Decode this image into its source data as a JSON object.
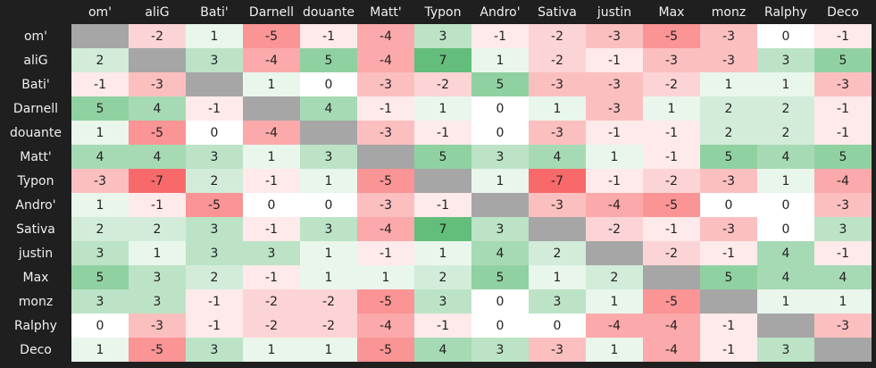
{
  "table": {
    "columns": [
      "om'",
      "aliG",
      "Bati'",
      "Darnell",
      "douante",
      "Matt'",
      "Typon",
      "Andro'",
      "Sativa",
      "justin",
      "Max",
      "monz",
      "Ralphy",
      "Deco"
    ],
    "rows": [
      {
        "label": "om'",
        "values": [
          null,
          -2,
          1,
          -5,
          -1,
          -4,
          3,
          -1,
          -2,
          -3,
          -5,
          -3,
          0,
          -1
        ]
      },
      {
        "label": "aliG",
        "values": [
          2,
          null,
          3,
          -4,
          5,
          -4,
          7,
          1,
          -2,
          -1,
          -3,
          -3,
          3,
          5
        ]
      },
      {
        "label": "Bati'",
        "values": [
          -1,
          -3,
          null,
          1,
          0,
          -3,
          -2,
          5,
          -3,
          -3,
          -2,
          1,
          1,
          -3
        ]
      },
      {
        "label": "Darnell",
        "values": [
          5,
          4,
          -1,
          null,
          4,
          -1,
          1,
          0,
          1,
          -3,
          1,
          2,
          2,
          -1
        ]
      },
      {
        "label": "douante",
        "values": [
          1,
          -5,
          0,
          -4,
          null,
          -3,
          -1,
          0,
          -3,
          -1,
          -1,
          2,
          2,
          -1
        ]
      },
      {
        "label": "Matt'",
        "values": [
          4,
          4,
          3,
          1,
          3,
          null,
          5,
          3,
          4,
          1,
          -1,
          5,
          4,
          5
        ]
      },
      {
        "label": "Typon",
        "values": [
          -3,
          -7,
          2,
          -1,
          1,
          -5,
          null,
          1,
          -7,
          -1,
          -2,
          -3,
          1,
          -4
        ]
      },
      {
        "label": "Andro'",
        "values": [
          1,
          -1,
          -5,
          0,
          0,
          -3,
          -1,
          null,
          -3,
          -4,
          -5,
          0,
          0,
          -3
        ]
      },
      {
        "label": "Sativa",
        "values": [
          2,
          2,
          3,
          -1,
          3,
          -4,
          7,
          3,
          null,
          -2,
          -1,
          -3,
          0,
          3
        ]
      },
      {
        "label": "justin",
        "values": [
          3,
          1,
          3,
          3,
          1,
          -1,
          1,
          4,
          2,
          null,
          -2,
          -1,
          4,
          -1
        ]
      },
      {
        "label": "Max",
        "values": [
          5,
          3,
          2,
          -1,
          1,
          1,
          2,
          5,
          1,
          2,
          null,
          5,
          4,
          4
        ]
      },
      {
        "label": "monz",
        "values": [
          3,
          3,
          -1,
          -2,
          -2,
          -5,
          3,
          0,
          3,
          1,
          -5,
          null,
          1,
          1
        ]
      },
      {
        "label": "Ralphy",
        "values": [
          0,
          -3,
          -1,
          -2,
          -2,
          -4,
          -1,
          0,
          0,
          -4,
          -4,
          -1,
          null,
          -3
        ]
      },
      {
        "label": "Deco",
        "values": [
          1,
          -5,
          3,
          1,
          1,
          -5,
          4,
          3,
          -3,
          1,
          -4,
          -1,
          3,
          null
        ]
      }
    ]
  }
}
